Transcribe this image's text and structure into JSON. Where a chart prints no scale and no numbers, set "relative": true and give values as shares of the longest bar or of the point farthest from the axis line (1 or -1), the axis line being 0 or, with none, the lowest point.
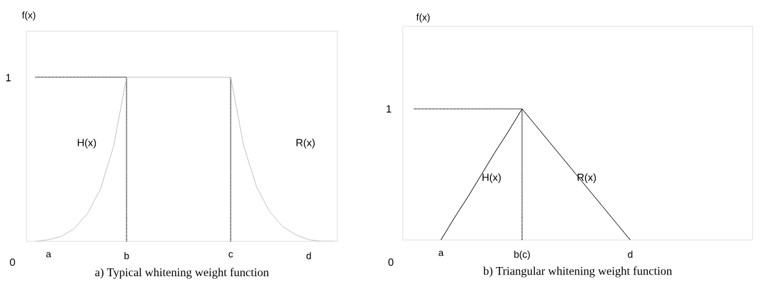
{
  "chart_data": [
    {
      "type": "line",
      "title": "a) Typical whitening weight function",
      "ylabel": "f(x)",
      "relative": true,
      "categories": [
        null,
        "a",
        null,
        null,
        null,
        null,
        null,
        "b",
        null,
        null,
        null,
        null,
        null,
        null,
        null,
        "c",
        null,
        null,
        null,
        null,
        null,
        "d",
        null,
        null
      ],
      "series": [
        {
          "color": "#c0c0c0",
          "line_style": "solid",
          "values": [
            0,
            0.01,
            0.03,
            0.08,
            0.17,
            0.32,
            0.58,
            1,
            1,
            1,
            1,
            1,
            1,
            1,
            1,
            1,
            0.58,
            0.33,
            0.18,
            0.09,
            0.04,
            0.01,
            0,
            0
          ]
        },
        {
          "color": "#000000",
          "line_style": "dotted",
          "values": [
            1,
            1,
            1,
            1,
            1,
            1,
            1,
            1,
            null,
            null,
            null,
            null,
            null,
            null,
            null,
            null,
            null,
            null,
            null,
            null,
            null,
            null,
            null,
            null
          ]
        }
      ],
      "ref_lines": [
        {
          "axis": "x",
          "value": "b",
          "color": "#000000",
          "line_style": "dotted"
        },
        {
          "axis": "x",
          "value": "c",
          "color": "#000000",
          "line_style": "dotted"
        }
      ],
      "annotations": [
        "0",
        "1",
        "H(x)",
        "R(x)"
      ]
    },
    {
      "type": "line",
      "title": "b) Triangular whitening weight function",
      "ylabel": "f(x)",
      "relative": true,
      "categories": [
        null,
        null,
        "a",
        null,
        null,
        null,
        null,
        null,
        "b(c)",
        null,
        null,
        null,
        null,
        null,
        null,
        null,
        "d",
        null,
        null,
        null,
        null,
        null,
        null,
        null,
        null,
        null
      ],
      "series": [
        {
          "color": "#000000",
          "line_style": "solid",
          "values": [
            null,
            null,
            0,
            0.17,
            0.33,
            0.5,
            0.67,
            0.83,
            1,
            0.875,
            0.75,
            0.625,
            0.5,
            0.375,
            0.25,
            0.125,
            0,
            null,
            null,
            null,
            null,
            null,
            null,
            null,
            null,
            null
          ]
        },
        {
          "color": "#000000",
          "line_style": "dotted",
          "values": [
            1,
            1,
            1,
            1,
            1,
            1,
            1,
            1,
            1,
            null,
            null,
            null,
            null,
            null,
            null,
            null,
            null,
            null,
            null,
            null,
            null,
            null,
            null,
            null,
            null,
            null
          ]
        }
      ],
      "ref_lines": [
        {
          "axis": "x",
          "value": "b(c)",
          "color": "#000000",
          "line_style": "dotted"
        }
      ],
      "annotations": [
        "0",
        "1",
        "H(x)",
        "R(x)"
      ]
    }
  ]
}
